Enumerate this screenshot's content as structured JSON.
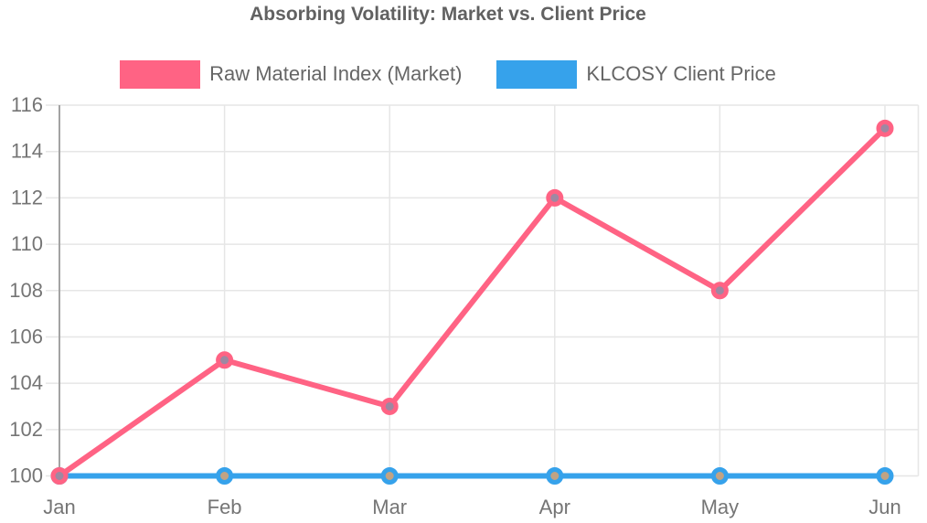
{
  "title": "Absorbing Volatility: Market vs. Client Price",
  "legend": [
    {
      "label": "Raw Material Index (Market)",
      "color": "#FF6384"
    },
    {
      "label": "KLCOSY Client Price",
      "color": "#36A2EB"
    }
  ],
  "chart_data": {
    "type": "line",
    "title": "Absorbing Volatility: Market vs. Client Price",
    "categories": [
      "Jan",
      "Feb",
      "Mar",
      "Apr",
      "May",
      "Jun"
    ],
    "series": [
      {
        "name": "Raw Material Index (Market)",
        "values": [
          100,
          105,
          103,
          112,
          108,
          115
        ],
        "color": "#FF6384",
        "marker_fill": "#9E88A2"
      },
      {
        "name": "KLCOSY Client Price",
        "values": [
          100,
          100,
          100,
          100,
          100,
          100
        ],
        "color": "#36A2EB",
        "marker_fill": "#C2A384"
      }
    ],
    "xlabel": "",
    "ylabel": "",
    "ylim": [
      100,
      116
    ],
    "yticks": [
      100,
      102,
      104,
      106,
      108,
      110,
      112,
      114,
      116
    ],
    "grid": true,
    "legend_position": "top",
    "colors": {
      "grid": "#E6E6E6",
      "axis": "#A3A3A3",
      "tick_text": "#757575",
      "title_text": "#616161",
      "legend_text": "#666666",
      "background": "#ffffff"
    }
  }
}
